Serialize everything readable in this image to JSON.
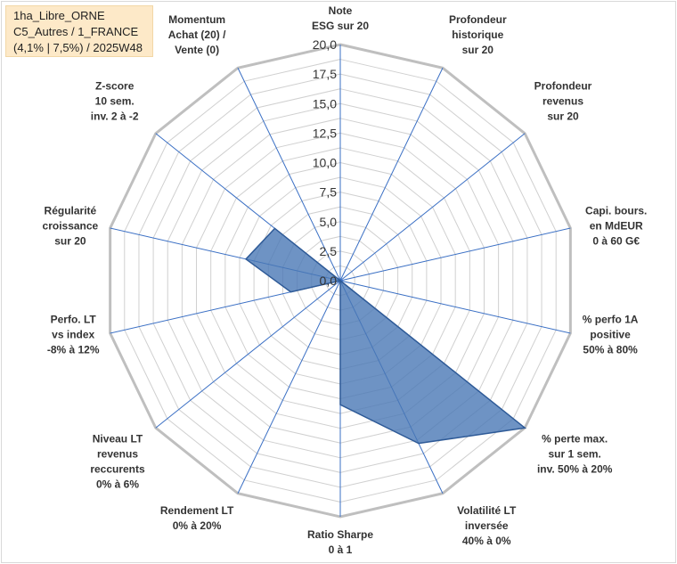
{
  "info_box": {
    "line1": "1ha_Libre_ORNE",
    "line2": "C5_Autres / 1_FRANCE",
    "line3": "(4,1% | 7,5%) / 2025W48"
  },
  "chart_data": {
    "type": "radar",
    "rmax": 20,
    "ticks": [
      "0,0",
      "2,5",
      "5,0",
      "7,5",
      "10,0",
      "12,5",
      "15,0",
      "17,5",
      "20,0"
    ],
    "axes": [
      [
        "Note",
        "ESG sur 20"
      ],
      [
        "Profondeur",
        "historique",
        "sur 20"
      ],
      [
        "Profondeur",
        "revenus",
        "sur 20"
      ],
      [
        "Capi. bours.",
        "en MdEUR",
        "0 à 60 G€"
      ],
      [
        "% perfo 1A",
        "positive",
        "50% à 80%"
      ],
      [
        "% perte max.",
        "sur 1 sem.",
        "inv. 50% à 20%"
      ],
      [
        "Volatilité LT",
        "inversée",
        "40% à 0%"
      ],
      [
        "Ratio Sharpe",
        "0 à 1"
      ],
      [
        "Rendement LT",
        "0% à 20%"
      ],
      [
        "Niveau LT",
        "revenus",
        "reccurents",
        "0% à 6%"
      ],
      [
        "Perfo. LT",
        "vs index",
        "-8% à 12%"
      ],
      [
        "Régularité",
        "croissance",
        "sur 20"
      ],
      [
        "Z-score",
        "10 sem.",
        "inv. 2 à -2"
      ],
      [
        "Momentum",
        "Achat (20) /",
        "Vente (0)"
      ]
    ],
    "series": [
      {
        "values": [
          0,
          0,
          0,
          0,
          0,
          20,
          15.3,
          10.5,
          0,
          0,
          4.3,
          8.2,
          7.1,
          0
        ]
      }
    ],
    "colors": {
      "fill": "#4a78b5",
      "fill_opacity": 0.8,
      "stroke": "#2e5a97",
      "axis": "#3a6fc4",
      "grid": "#d0d0d0",
      "outer": "#bfbfbf"
    }
  }
}
